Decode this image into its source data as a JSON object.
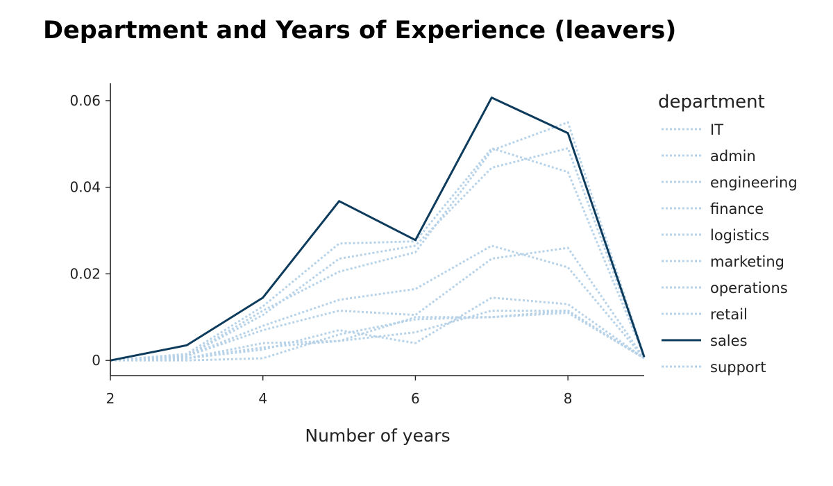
{
  "chart_data": {
    "type": "line",
    "title": "Department and Years of Experience (leavers)",
    "xlabel": "Number of years",
    "ylabel": "",
    "xlim": [
      2,
      9
    ],
    "ylim": [
      -0.0035,
      0.064
    ],
    "x_ticks": [
      2,
      4,
      6,
      8
    ],
    "y_ticks": [
      0,
      0.02,
      0.04,
      0.06
    ],
    "y_tick_labels": [
      "0",
      "0.02",
      "0.04",
      "0.06"
    ],
    "x": [
      2,
      3,
      4,
      5,
      6,
      7,
      8,
      9
    ],
    "grid": false,
    "legend": {
      "title": "department",
      "placement": "right"
    },
    "highlight_color": "#0d3b5c",
    "muted_color": "#b8d3e8",
    "series": [
      {
        "name": "IT",
        "values": [
          0,
          0.001,
          0.008,
          0.014,
          0.0165,
          0.0265,
          0.0215,
          0.0005
        ],
        "style": "dotted"
      },
      {
        "name": "admin",
        "values": [
          0,
          0.0005,
          0.003,
          0.0045,
          0.01,
          0.01,
          0.0115,
          0.0005
        ],
        "style": "dotted"
      },
      {
        "name": "engineering",
        "values": [
          0,
          0.0015,
          0.0125,
          0.027,
          0.0275,
          0.049,
          0.0435,
          0.001
        ],
        "style": "dotted"
      },
      {
        "name": "finance",
        "values": [
          0,
          0.0005,
          0.0025,
          0.007,
          0.004,
          0.0145,
          0.013,
          0.0005
        ],
        "style": "dotted"
      },
      {
        "name": "logistics",
        "values": [
          0,
          0.0,
          0.0005,
          0.006,
          0.0095,
          0.01,
          0.011,
          0.0005
        ],
        "style": "dotted"
      },
      {
        "name": "marketing",
        "values": [
          0,
          0.001,
          0.0105,
          0.0235,
          0.0265,
          0.0445,
          0.049,
          0.001
        ],
        "style": "dotted"
      },
      {
        "name": "operations",
        "values": [
          0,
          0.001,
          0.0115,
          0.0205,
          0.025,
          0.0485,
          0.055,
          0.001
        ],
        "style": "dotted"
      },
      {
        "name": "retail",
        "values": [
          0,
          0.0005,
          0.004,
          0.0045,
          0.0065,
          0.0115,
          0.0115,
          0.0005
        ],
        "style": "dotted"
      },
      {
        "name": "sales",
        "values": [
          0,
          0.0035,
          0.0145,
          0.0368,
          0.0278,
          0.0607,
          0.0525,
          0.0008
        ],
        "style": "solid"
      },
      {
        "name": "support",
        "values": [
          0,
          0.001,
          0.007,
          0.0115,
          0.0105,
          0.0235,
          0.026,
          0.0005
        ],
        "style": "dotted"
      }
    ]
  }
}
